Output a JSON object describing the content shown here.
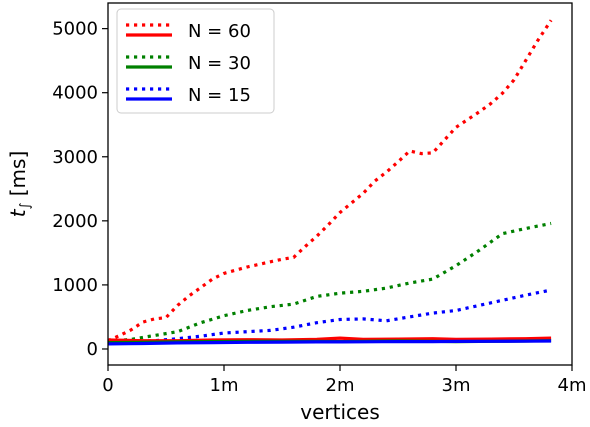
{
  "chart_data": {
    "type": "line",
    "xlabel": "vertices",
    "ylabel": "t",
    "ylabel_sub": "∫",
    "ylabel_unit": "[ms]",
    "xlim": [
      0,
      4000000
    ],
    "ylim": [
      -250,
      5400
    ],
    "x_ticks": [
      {
        "value": 0,
        "label": "0"
      },
      {
        "value": 1000000,
        "label": "1m"
      },
      {
        "value": 2000000,
        "label": "2m"
      },
      {
        "value": 3000000,
        "label": "3m"
      },
      {
        "value": 4000000,
        "label": "4m"
      }
    ],
    "y_ticks": [
      {
        "value": 0,
        "label": "0"
      },
      {
        "value": 1000,
        "label": "1000"
      },
      {
        "value": 2000,
        "label": "2000"
      },
      {
        "value": 3000,
        "label": "3000"
      },
      {
        "value": 4000,
        "label": "4000"
      },
      {
        "value": 5000,
        "label": "5000"
      }
    ],
    "grid": false,
    "legend_position": "top-left",
    "legend": [
      {
        "label": "N = 60",
        "color": "#ff0000"
      },
      {
        "label": "N = 30",
        "color": "#008000"
      },
      {
        "label": "N = 15",
        "color": "#0000ff"
      }
    ],
    "series": [
      {
        "label": "N = 60",
        "style": "dotted",
        "color": "#ff0000",
        "x": [
          0,
          100000,
          200000,
          300000,
          400000,
          500000,
          600000,
          700000,
          800000,
          900000,
          1000000,
          1100000,
          1200000,
          1300000,
          1400000,
          1500000,
          1600000,
          1700000,
          1800000,
          1900000,
          2000000,
          2100000,
          2200000,
          2300000,
          2400000,
          2500000,
          2600000,
          2700000,
          2800000,
          2900000,
          3000000,
          3100000,
          3200000,
          3300000,
          3400000,
          3500000,
          3600000,
          3700000,
          3820000
        ],
        "y": [
          130,
          210,
          300,
          420,
          470,
          490,
          680,
          830,
          960,
          1090,
          1180,
          1230,
          1280,
          1320,
          1360,
          1400,
          1430,
          1600,
          1760,
          1940,
          2130,
          2280,
          2430,
          2620,
          2760,
          2920,
          3090,
          3050,
          3060,
          3260,
          3460,
          3580,
          3700,
          3830,
          3990,
          4200,
          4500,
          4800,
          5130
        ]
      },
      {
        "label": "N = 30",
        "style": "dotted",
        "color": "#008000",
        "x": [
          0,
          200000,
          400000,
          600000,
          800000,
          1000000,
          1200000,
          1400000,
          1600000,
          1800000,
          2000000,
          2200000,
          2400000,
          2600000,
          2800000,
          3000000,
          3200000,
          3400000,
          3600000,
          3820000
        ],
        "y": [
          120,
          150,
          210,
          270,
          410,
          520,
          600,
          660,
          700,
          820,
          870,
          900,
          950,
          1030,
          1090,
          1300,
          1540,
          1800,
          1880,
          1960
        ]
      },
      {
        "label": "N = 15",
        "style": "dotted",
        "color": "#0000ff",
        "x": [
          0,
          200000,
          400000,
          600000,
          800000,
          1000000,
          1200000,
          1400000,
          1600000,
          1800000,
          2000000,
          2200000,
          2400000,
          2600000,
          2800000,
          3000000,
          3200000,
          3400000,
          3600000,
          3820000
        ],
        "y": [
          100,
          110,
          130,
          160,
          200,
          250,
          270,
          290,
          340,
          410,
          460,
          470,
          440,
          500,
          560,
          600,
          680,
          760,
          840,
          920
        ]
      },
      {
        "label": "N = 60",
        "style": "solid",
        "color": "#ff0000",
        "x": [
          0,
          300000,
          600000,
          900000,
          1200000,
          1500000,
          1800000,
          2000000,
          2200000,
          2500000,
          2800000,
          3000000,
          3300000,
          3600000,
          3820000
        ],
        "y": [
          140,
          130,
          130,
          140,
          145,
          140,
          150,
          170,
          150,
          155,
          160,
          150,
          155,
          160,
          170
        ]
      },
      {
        "label": "N = 30",
        "style": "solid",
        "color": "#008000",
        "x": [
          0,
          300000,
          600000,
          900000,
          1200000,
          1500000,
          1800000,
          2000000,
          2200000,
          2500000,
          2800000,
          3000000,
          3300000,
          3600000,
          3820000
        ],
        "y": [
          100,
          105,
          110,
          115,
          120,
          120,
          118,
          115,
          120,
          125,
          120,
          115,
          120,
          125,
          130
        ]
      },
      {
        "label": "N = 15",
        "style": "solid",
        "color": "#0000ff",
        "x": [
          0,
          300000,
          600000,
          900000,
          1200000,
          1500000,
          1800000,
          2000000,
          2200000,
          2500000,
          2800000,
          3000000,
          3300000,
          3600000,
          3820000
        ],
        "y": [
          80,
          85,
          95,
          100,
          105,
          108,
          110,
          110,
          112,
          115,
          115,
          118,
          120,
          122,
          125
        ]
      }
    ]
  }
}
